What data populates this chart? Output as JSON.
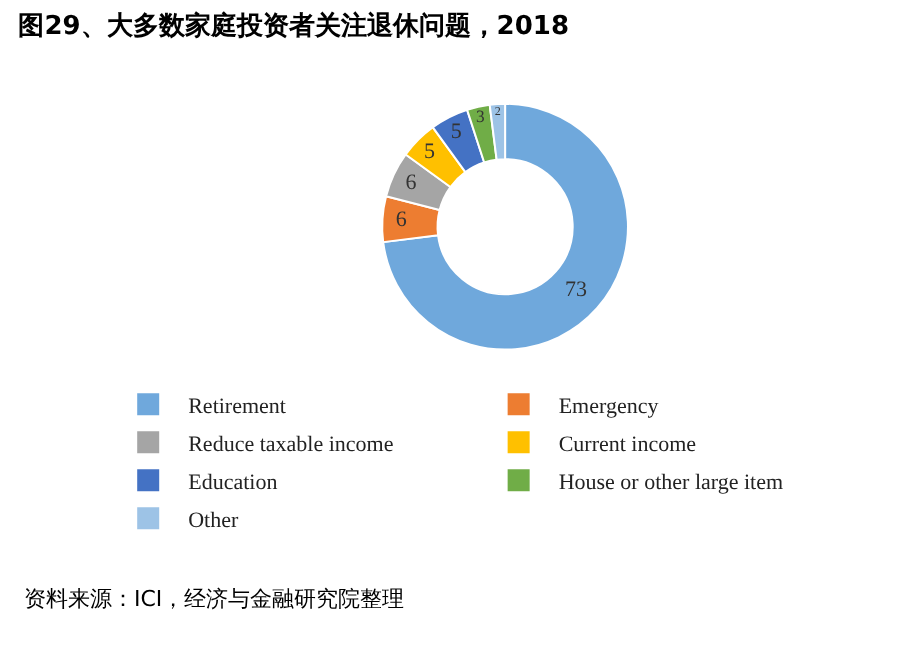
{
  "chart_data": {
    "type": "donut",
    "title": "图29、大多数家庭投资者关注退休问题，2018",
    "categories": [
      "Retirement",
      "Emergency",
      "Reduce taxable income",
      "Current income",
      "Education",
      "House or other large item",
      "Other"
    ],
    "values": [
      73,
      6,
      6,
      5,
      5,
      3,
      2
    ],
    "colors": [
      "#6fa8dc",
      "#ed7d31",
      "#a5a5a5",
      "#ffc000",
      "#4472c4",
      "#70ad47",
      "#9dc3e6"
    ],
    "data_labels": true,
    "legend": "bottom",
    "annotations": [
      "资料来源：ICI，经济与金融研究院整理"
    ]
  }
}
